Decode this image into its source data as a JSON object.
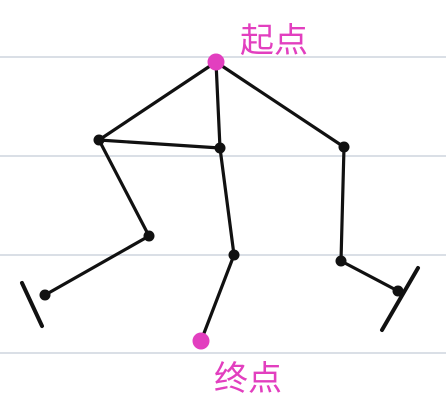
{
  "diagram": {
    "start_label": "起点",
    "end_label": "终点",
    "colors": {
      "paper": "#ffffff",
      "rule_lines": "#c3ccd6",
      "ink": "#111111",
      "accent": "#e23fbf"
    },
    "nodes": [
      {
        "id": "start",
        "role": "start"
      },
      {
        "id": "left-hip",
        "role": "joint"
      },
      {
        "id": "center-joint",
        "role": "joint"
      },
      {
        "id": "right-hip",
        "role": "joint"
      },
      {
        "id": "left-knee",
        "role": "joint"
      },
      {
        "id": "center-knee",
        "role": "joint"
      },
      {
        "id": "right-knee",
        "role": "joint"
      },
      {
        "id": "left-foot",
        "role": "joint"
      },
      {
        "id": "right-foot",
        "role": "joint"
      },
      {
        "id": "end",
        "role": "end"
      }
    ],
    "edges": [
      [
        "start",
        "left-hip"
      ],
      [
        "start",
        "center-joint"
      ],
      [
        "start",
        "right-hip"
      ],
      [
        "left-hip",
        "center-joint"
      ],
      [
        "left-hip",
        "left-knee"
      ],
      [
        "left-knee",
        "left-foot"
      ],
      [
        "center-joint",
        "center-knee"
      ],
      [
        "center-knee",
        "end"
      ],
      [
        "right-hip",
        "right-knee"
      ],
      [
        "right-knee",
        "right-foot"
      ]
    ]
  }
}
